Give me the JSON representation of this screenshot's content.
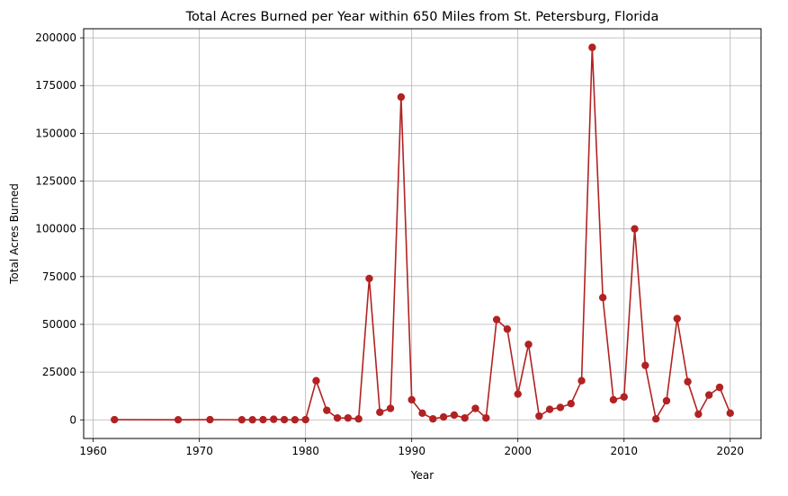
{
  "chart_data": {
    "type": "line",
    "title": "Total Acres Burned per Year within 650 Miles from St. Petersburg, Florida",
    "xlabel": "Year",
    "ylabel": "Total Acres Burned",
    "xlim": [
      1959.1,
      2022.9
    ],
    "ylim": [
      -9750,
      204750
    ],
    "xticks": [
      1960,
      1970,
      1980,
      1990,
      2000,
      2010,
      2020
    ],
    "yticks": [
      0,
      25000,
      50000,
      75000,
      100000,
      125000,
      150000,
      175000,
      200000
    ],
    "grid": true,
    "series": [
      {
        "color": "#b22222",
        "marker": "circle",
        "points": [
          [
            1962,
            100
          ],
          [
            1968,
            50
          ],
          [
            1971,
            100
          ],
          [
            1974,
            50
          ],
          [
            1975,
            50
          ],
          [
            1976,
            100
          ],
          [
            1977,
            300
          ],
          [
            1978,
            100
          ],
          [
            1979,
            50
          ],
          [
            1980,
            100
          ],
          [
            1981,
            20500
          ],
          [
            1982,
            5000
          ],
          [
            1983,
            1000
          ],
          [
            1984,
            1000
          ],
          [
            1985,
            500
          ],
          [
            1986,
            74000
          ],
          [
            1987,
            4000
          ],
          [
            1988,
            6000
          ],
          [
            1989,
            169000
          ],
          [
            1990,
            10500
          ],
          [
            1991,
            3500
          ],
          [
            1992,
            500
          ],
          [
            1993,
            1500
          ],
          [
            1994,
            2500
          ],
          [
            1995,
            1000
          ],
          [
            1996,
            6000
          ],
          [
            1997,
            1000
          ],
          [
            1998,
            52500
          ],
          [
            1999,
            47500
          ],
          [
            2000,
            13500
          ],
          [
            2001,
            39500
          ],
          [
            2002,
            2000
          ],
          [
            2003,
            5500
          ],
          [
            2004,
            6500
          ],
          [
            2005,
            8500
          ],
          [
            2006,
            20500
          ],
          [
            2007,
            195000
          ],
          [
            2008,
            64000
          ],
          [
            2009,
            10500
          ],
          [
            2010,
            12000
          ],
          [
            2011,
            100000
          ],
          [
            2012,
            28500
          ],
          [
            2013,
            500
          ],
          [
            2014,
            10000
          ],
          [
            2015,
            53000
          ],
          [
            2016,
            20000
          ],
          [
            2017,
            3000
          ],
          [
            2018,
            13000
          ],
          [
            2019,
            17000
          ],
          [
            2020,
            3500
          ]
        ]
      }
    ]
  }
}
